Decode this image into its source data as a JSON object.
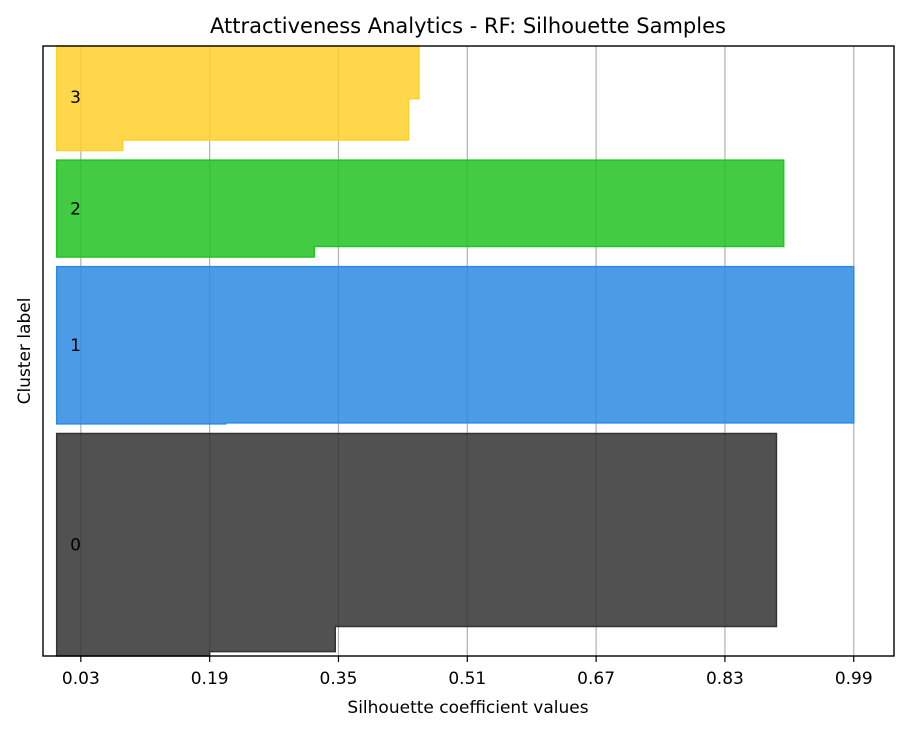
{
  "chart_data": {
    "type": "area",
    "title": "Attractiveness Analytics - RF: Silhouette Samples",
    "xlabel": "Silhouette coefficient values",
    "ylabel": "Cluster label",
    "xlim": [
      -0.017,
      1.04
    ],
    "x_ticks": [
      "0.03",
      "0.19",
      "0.35",
      "0.51",
      "0.67",
      "0.83",
      "0.99"
    ],
    "x_tick_values": [
      0.03,
      0.19,
      0.35,
      0.51,
      0.67,
      0.83,
      0.99
    ],
    "grid": "vertical",
    "clusters": [
      {
        "label": "0",
        "color": "#333333",
        "steps": [
          {
            "from": 0,
            "to": 4.5,
            "value": 0.19
          },
          {
            "from": 4.5,
            "to": 30.8,
            "value": 0.346
          },
          {
            "from": 30.8,
            "to": 232,
            "value": 0.894
          }
        ]
      },
      {
        "label": "1",
        "color": "#2d8ae3",
        "steps": [
          {
            "from": 242,
            "to": 243,
            "value": 0.21
          },
          {
            "from": 243,
            "to": 406,
            "value": 0.99
          }
        ]
      },
      {
        "label": "2",
        "color": "#22c322",
        "steps": [
          {
            "from": 416,
            "to": 427,
            "value": 0.32
          },
          {
            "from": 427,
            "to": 517,
            "value": 0.903
          }
        ]
      },
      {
        "label": "3",
        "color": "#ffd02a",
        "steps": [
          {
            "from": 527,
            "to": 538,
            "value": 0.082
          },
          {
            "from": 538,
            "to": 581,
            "value": 0.437
          },
          {
            "from": 581,
            "to": 636,
            "value": 0.45
          }
        ]
      }
    ],
    "ylim": [
      0,
      636
    ],
    "y_tick_positions": [
      116,
      324,
      466.5,
      583
    ]
  }
}
